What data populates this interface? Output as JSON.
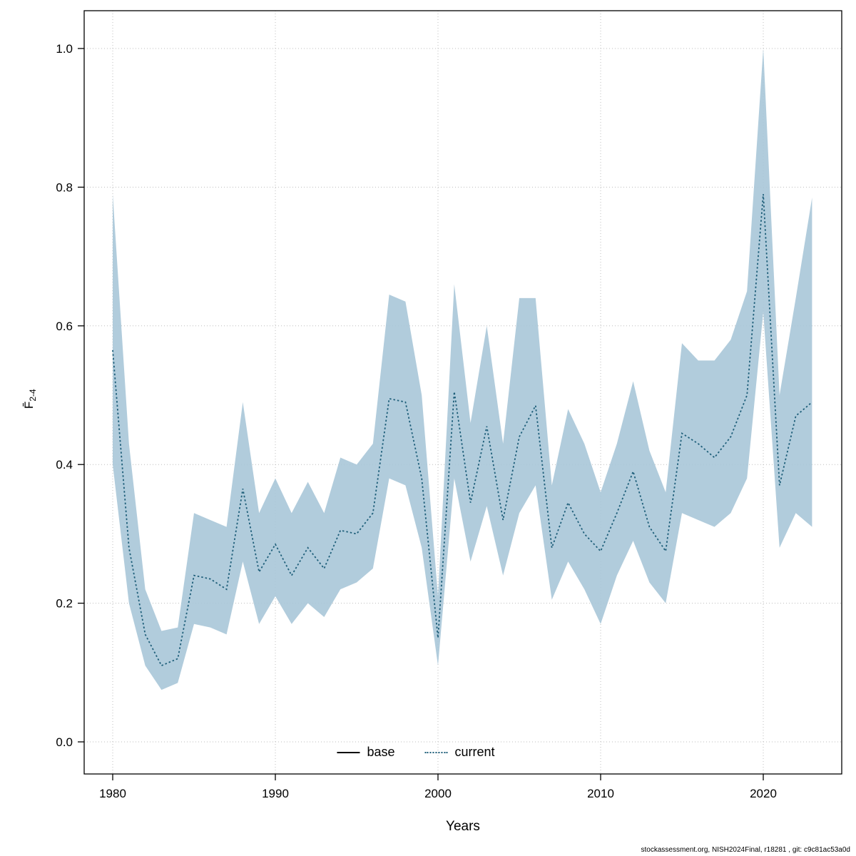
{
  "chart_data": {
    "type": "line",
    "title": "",
    "xlabel": "Years",
    "ylabel_main": "F̄",
    "ylabel_sub": "2-4",
    "x_ticks": [
      1980,
      1990,
      2000,
      2010,
      2020
    ],
    "y_ticks": [
      "0.0",
      "0.2",
      "0.4",
      "0.6",
      "0.8",
      "1.0"
    ],
    "xlim": [
      1978.2,
      2024.8
    ],
    "ylim": [
      0.0,
      1.0
    ],
    "grid": "dotted",
    "legend_position": "bottom-center-inside",
    "years": [
      1980,
      1981,
      1982,
      1983,
      1984,
      1985,
      1986,
      1987,
      1988,
      1989,
      1990,
      1991,
      1992,
      1993,
      1994,
      1995,
      1996,
      1997,
      1998,
      1999,
      2000,
      2001,
      2002,
      2003,
      2004,
      2005,
      2006,
      2007,
      2008,
      2009,
      2010,
      2011,
      2012,
      2013,
      2014,
      2015,
      2016,
      2017,
      2018,
      2019,
      2020,
      2021,
      2022,
      2023
    ],
    "values": [
      0.565,
      0.28,
      0.155,
      0.11,
      0.12,
      0.24,
      0.235,
      0.22,
      0.365,
      0.245,
      0.285,
      0.24,
      0.28,
      0.25,
      0.305,
      0.3,
      0.33,
      0.495,
      0.49,
      0.38,
      0.15,
      0.505,
      0.345,
      0.455,
      0.32,
      0.44,
      0.485,
      0.28,
      0.345,
      0.3,
      0.275,
      0.33,
      0.39,
      0.31,
      0.275,
      0.445,
      0.43,
      0.41,
      0.44,
      0.5,
      0.79,
      0.37,
      0.47,
      0.49
    ],
    "lower": [
      0.4,
      0.2,
      0.11,
      0.075,
      0.085,
      0.17,
      0.165,
      0.155,
      0.26,
      0.17,
      0.21,
      0.17,
      0.2,
      0.18,
      0.22,
      0.23,
      0.25,
      0.38,
      0.37,
      0.28,
      0.11,
      0.38,
      0.26,
      0.34,
      0.24,
      0.33,
      0.37,
      0.205,
      0.26,
      0.22,
      0.17,
      0.24,
      0.29,
      0.23,
      0.2,
      0.33,
      0.32,
      0.31,
      0.33,
      0.38,
      0.62,
      0.28,
      0.33,
      0.31
    ],
    "upper": [
      0.79,
      0.43,
      0.22,
      0.16,
      0.165,
      0.33,
      0.32,
      0.31,
      0.49,
      0.33,
      0.38,
      0.33,
      0.375,
      0.33,
      0.41,
      0.4,
      0.43,
      0.645,
      0.635,
      0.5,
      0.21,
      0.66,
      0.46,
      0.6,
      0.43,
      0.64,
      0.64,
      0.37,
      0.48,
      0.43,
      0.36,
      0.43,
      0.52,
      0.42,
      0.36,
      0.575,
      0.55,
      0.55,
      0.58,
      0.65,
      1.0,
      0.5,
      0.64,
      0.785
    ],
    "legend": [
      {
        "label": "base",
        "style": "solid",
        "color": "#000000"
      },
      {
        "label": "current",
        "style": "dotted",
        "color": "#1f5f7a"
      }
    ],
    "colors": {
      "band": "#a8c7d8",
      "line": "#1f5f7a",
      "grid": "#bdbdbd",
      "axis": "#000000"
    }
  },
  "footer": {
    "text": "stockassessment.org, NISH2024Final, r18281 , git: c9c81ac53a0d"
  }
}
